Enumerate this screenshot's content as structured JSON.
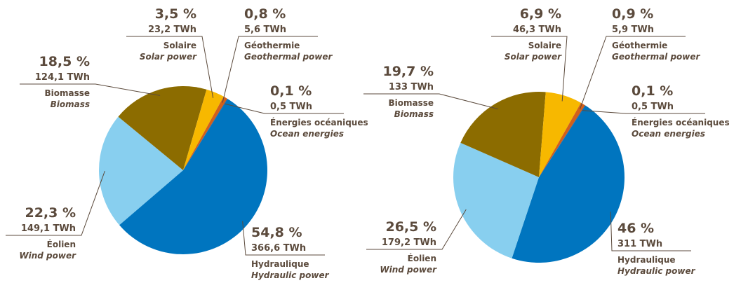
{
  "chart_data": [
    {
      "type": "pie",
      "categories": [
        "Hydraulique",
        "Éolien",
        "Biomasse",
        "Solaire",
        "Géothermie",
        "Énergies océaniques"
      ],
      "categories_en": [
        "Hydraulic power",
        "Wind power",
        "Biomass",
        "Solar power",
        "Geothermal power",
        "Ocean energies"
      ],
      "values": [
        54.8,
        22.3,
        18.5,
        3.5,
        0.8,
        0.1
      ],
      "value_labels": [
        "54,8 %",
        "22,3 %",
        "18,5 %",
        "3,5 %",
        "0,8 %",
        "0,1 %"
      ],
      "twh": [
        366.6,
        149.1,
        124.1,
        23.2,
        5.6,
        0.5
      ],
      "twh_labels": [
        "366,6 TWh",
        "149,1 TWh",
        "124,1 TWh",
        "23,2 TWh",
        "5,6 TWh",
        "0,5 TWh"
      ],
      "colors": [
        "#0075bf",
        "#88cfef",
        "#8c6c00",
        "#f7b800",
        "#d2601a",
        "#1b4f8f"
      ]
    },
    {
      "type": "pie",
      "categories": [
        "Hydraulique",
        "Éolien",
        "Biomasse",
        "Solaire",
        "Géothermie",
        "Énergies océaniques"
      ],
      "categories_en": [
        "Hydraulic power",
        "Wind power",
        "Biomass",
        "Solar power",
        "Geothermal power",
        "Ocean energies"
      ],
      "values": [
        46,
        26.5,
        19.7,
        6.9,
        0.9,
        0.1
      ],
      "value_labels": [
        "46 %",
        "26,5 %",
        "19,7 %",
        "6,9 %",
        "0,9 %",
        "0,1 %"
      ],
      "twh": [
        311,
        179.2,
        133,
        46.3,
        5.9,
        0.5
      ],
      "twh_labels": [
        "311 TWh",
        "179,2 TWh",
        "133 TWh",
        "46,3 TWh",
        "5,9 TWh",
        "0,5 TWh"
      ],
      "colors": [
        "#0075bf",
        "#88cfef",
        "#8c6c00",
        "#f7b800",
        "#d2601a",
        "#1b4f8f"
      ]
    }
  ]
}
